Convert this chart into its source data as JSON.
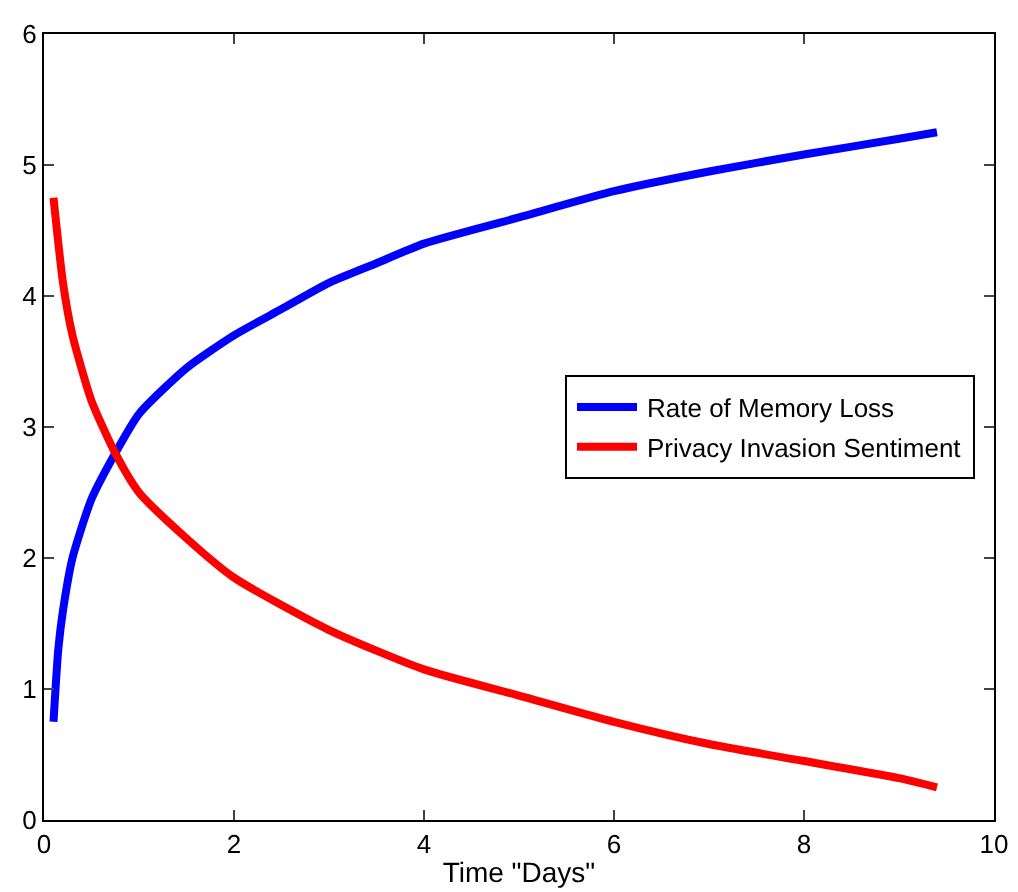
{
  "chart_data": {
    "type": "line",
    "xlabel": "Time \"Days\"",
    "xlim": [
      0,
      10
    ],
    "xticks": [
      0,
      2,
      4,
      6,
      8,
      10
    ],
    "ylim": [
      0,
      6
    ],
    "yticks": [
      0,
      1,
      2,
      3,
      4,
      5,
      6
    ],
    "grid": false,
    "legend": "right",
    "marker": "none",
    "line_style": "solid",
    "series": [
      {
        "name": "Rate of Memory Loss",
        "color": "#0000ff",
        "x": [
          0.1,
          0.15,
          0.2,
          0.3,
          0.5,
          0.75,
          1,
          1.5,
          2,
          2.5,
          3,
          3.5,
          4,
          5,
          6,
          7,
          8,
          9,
          9.4
        ],
        "values": [
          0.75,
          1.3,
          1.6,
          2.0,
          2.45,
          2.8,
          3.1,
          3.45,
          3.7,
          3.9,
          4.1,
          4.25,
          4.4,
          4.6,
          4.8,
          4.95,
          5.08,
          5.2,
          5.25
        ]
      },
      {
        "name": "Privacy Invasion Sentiment",
        "color": "#ff0000",
        "x": [
          0.1,
          0.2,
          0.3,
          0.5,
          0.75,
          1,
          1.5,
          2,
          3,
          4,
          5,
          6,
          7,
          8,
          9,
          9.4
        ],
        "values": [
          4.75,
          4.1,
          3.7,
          3.2,
          2.8,
          2.5,
          2.15,
          1.85,
          1.45,
          1.15,
          0.95,
          0.75,
          0.58,
          0.45,
          0.32,
          0.25
        ]
      }
    ]
  }
}
